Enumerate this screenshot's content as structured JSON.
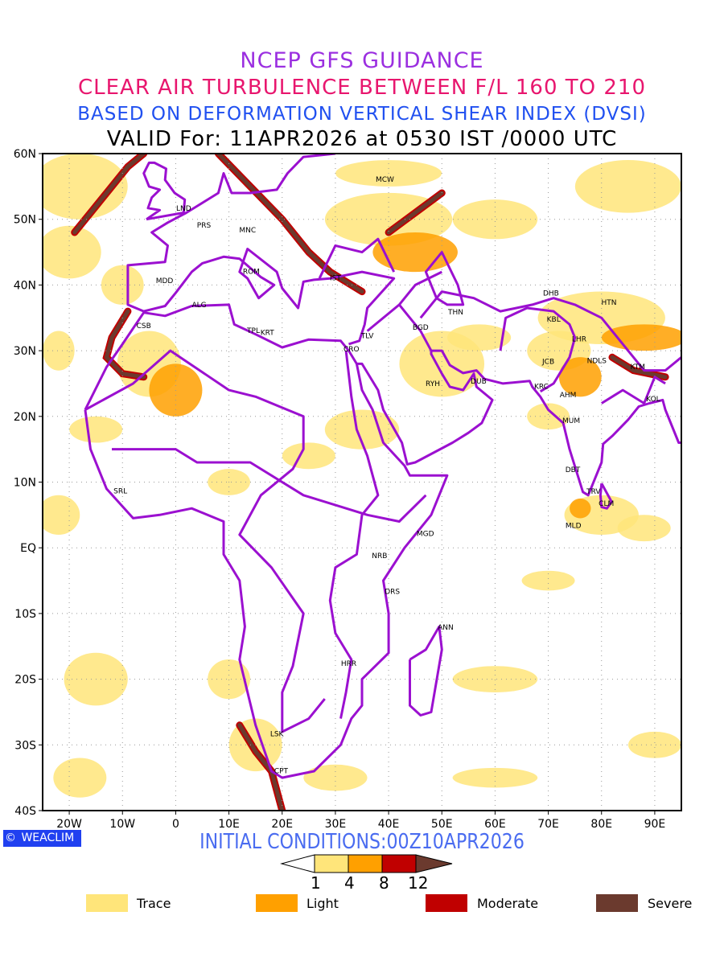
{
  "titles": {
    "line1": "NCEP GFS GUIDANCE",
    "line2": "CLEAR AIR TURBULENCE BETWEEN F/L 160 TO 210",
    "line3": "BASED ON DEFORMATION VERTICAL SHEAR INDEX (DVSI)",
    "line4": "VALID For: 11APR2026 at 0530 IST /0000 UTC"
  },
  "initial_conditions": "INITIAL CONDITIONS:00Z10APR2026",
  "logo": {
    "text": "WEACLIM",
    "icon": "copyright-icon"
  },
  "axes": {
    "lon_ticks": [
      {
        "v": -20,
        "label": "20W"
      },
      {
        "v": -10,
        "label": "10W"
      },
      {
        "v": 0,
        "label": "0"
      },
      {
        "v": 10,
        "label": "10E"
      },
      {
        "v": 20,
        "label": "20E"
      },
      {
        "v": 30,
        "label": "30E"
      },
      {
        "v": 40,
        "label": "40E"
      },
      {
        "v": 50,
        "label": "50E"
      },
      {
        "v": 60,
        "label": "60E"
      },
      {
        "v": 70,
        "label": "70E"
      },
      {
        "v": 80,
        "label": "80E"
      },
      {
        "v": 90,
        "label": "90E"
      }
    ],
    "lat_ticks": [
      {
        "v": 60,
        "label": "60N"
      },
      {
        "v": 50,
        "label": "50N"
      },
      {
        "v": 40,
        "label": "40N"
      },
      {
        "v": 30,
        "label": "30N"
      },
      {
        "v": 20,
        "label": "20N"
      },
      {
        "v": 10,
        "label": "10N"
      },
      {
        "v": 0,
        "label": "EQ"
      },
      {
        "v": -10,
        "label": "10S"
      },
      {
        "v": -20,
        "label": "20S"
      },
      {
        "v": -30,
        "label": "30S"
      },
      {
        "v": -40,
        "label": "40S"
      }
    ],
    "lon_range": [
      -25,
      95
    ],
    "lat_range": [
      -40,
      60
    ]
  },
  "stations": [
    {
      "code": "MCW",
      "lon": 39.3,
      "lat": 56.2
    },
    {
      "code": "LND",
      "lon": 1.5,
      "lat": 51.8
    },
    {
      "code": "PRS",
      "lon": 5.3,
      "lat": 49.2
    },
    {
      "code": "MNC",
      "lon": 13.5,
      "lat": 48.5
    },
    {
      "code": "ROM",
      "lon": 14.2,
      "lat": 42.2
    },
    {
      "code": "IST",
      "lon": 30,
      "lat": 41.2
    },
    {
      "code": "MDD",
      "lon": -2.1,
      "lat": 40.8
    },
    {
      "code": "ALG",
      "lon": 4.4,
      "lat": 37.1
    },
    {
      "code": "CSB",
      "lon": -6,
      "lat": 33.9
    },
    {
      "code": "TPL",
      "lon": 14.6,
      "lat": 33.2
    },
    {
      "code": "KRT",
      "lon": 17.2,
      "lat": 32.9
    },
    {
      "code": "TLV",
      "lon": 36,
      "lat": 32.4
    },
    {
      "code": "CRO",
      "lon": 33,
      "lat": 30.4
    },
    {
      "code": "BGD",
      "lon": 46,
      "lat": 33.7
    },
    {
      "code": "THN",
      "lon": 52.6,
      "lat": 36
    },
    {
      "code": "DHB",
      "lon": 70.5,
      "lat": 38.9
    },
    {
      "code": "HTN",
      "lon": 81.4,
      "lat": 37.5
    },
    {
      "code": "KBL",
      "lon": 71,
      "lat": 34.9
    },
    {
      "code": "LHR",
      "lon": 75.8,
      "lat": 31.9
    },
    {
      "code": "JCB",
      "lon": 70,
      "lat": 28.5
    },
    {
      "code": "NDLS",
      "lon": 79.1,
      "lat": 28.6
    },
    {
      "code": "KTM",
      "lon": 86.8,
      "lat": 27.7
    },
    {
      "code": "RYH",
      "lon": 48.3,
      "lat": 25.1
    },
    {
      "code": "DUB",
      "lon": 56.9,
      "lat": 25.5
    },
    {
      "code": "KRC",
      "lon": 68.7,
      "lat": 24.7
    },
    {
      "code": "AHM",
      "lon": 73.7,
      "lat": 23.4
    },
    {
      "code": "KOL",
      "lon": 89.7,
      "lat": 22.8
    },
    {
      "code": "MUM",
      "lon": 74.3,
      "lat": 19.5
    },
    {
      "code": "DBT",
      "lon": 74.6,
      "lat": 12
    },
    {
      "code": "TRV",
      "lon": 78.5,
      "lat": 8.7
    },
    {
      "code": "CLM",
      "lon": 80.9,
      "lat": 6.9
    },
    {
      "code": "MLD",
      "lon": 74.7,
      "lat": 3.5
    },
    {
      "code": "SRL",
      "lon": -10.4,
      "lat": 8.8
    },
    {
      "code": "MGD",
      "lon": 46.9,
      "lat": 2.3
    },
    {
      "code": "NRB",
      "lon": 38.3,
      "lat": -1.1
    },
    {
      "code": "DRS",
      "lon": 40.7,
      "lat": -6.5
    },
    {
      "code": "ANN",
      "lon": 50.7,
      "lat": -12
    },
    {
      "code": "HRR",
      "lon": 32.5,
      "lat": -17.5
    },
    {
      "code": "LSK",
      "lon": 19,
      "lat": -28.2
    },
    {
      "code": "CPT",
      "lon": 19.8,
      "lat": -33.8
    }
  ],
  "colorbar": {
    "levels": [
      "1",
      "4",
      "8",
      "12"
    ],
    "colors": [
      "#ffe57a",
      "#ffa000",
      "#c00000",
      "#6b3a2e"
    ]
  },
  "legend": [
    {
      "label": "Trace",
      "color": "#ffe57a"
    },
    {
      "label": "Light",
      "color": "#ffa000"
    },
    {
      "label": "Moderate",
      "color": "#c00000"
    },
    {
      "label": "Severe",
      "color": "#6b3a2e"
    }
  ],
  "colors": {
    "boundary": "#9b10d0",
    "title1": "#9b2fe0",
    "title2": "#e8166e",
    "title3": "#2050f0"
  }
}
